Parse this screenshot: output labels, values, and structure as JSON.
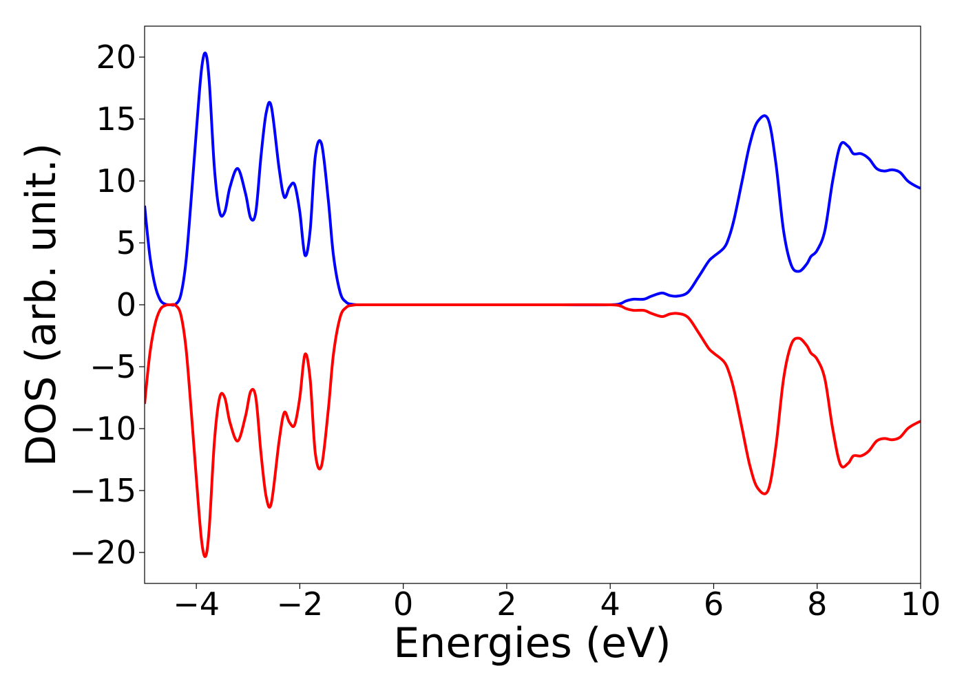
{
  "chart_data": {
    "type": "line",
    "title": "",
    "xlabel": "Energies (eV)",
    "ylabel": "DOS (arb. unit.)",
    "xlim": [
      -5,
      10
    ],
    "ylim": [
      -22.5,
      22.5
    ],
    "x_ticks": [
      -4,
      -2,
      0,
      2,
      4,
      6,
      8,
      10
    ],
    "y_ticks": [
      -20,
      -15,
      -10,
      -5,
      0,
      5,
      10,
      15,
      20
    ],
    "x_tick_labels": [
      "−4",
      "−2",
      "0",
      "2",
      "4",
      "6",
      "8",
      "10"
    ],
    "y_tick_labels": [
      "−20",
      "−15",
      "−10",
      "−5",
      "0",
      "5",
      "10",
      "15",
      "20"
    ],
    "grid": false,
    "legend": "none",
    "series": [
      {
        "color": "#0000ff",
        "x": [
          -5.0,
          -4.9,
          -4.8,
          -4.7,
          -4.6,
          -4.5,
          -4.4,
          -4.3,
          -4.2,
          -4.1,
          -4.0,
          -3.9,
          -3.82,
          -3.75,
          -3.65,
          -3.55,
          -3.45,
          -3.35,
          -3.2,
          -3.05,
          -2.95,
          -2.85,
          -2.75,
          -2.65,
          -2.55,
          -2.4,
          -2.3,
          -2.2,
          -2.1,
          -2.0,
          -1.9,
          -1.8,
          -1.7,
          -1.58,
          -1.45,
          -1.35,
          -1.22,
          -1.1,
          -1.0,
          -0.9,
          -0.8,
          -0.7,
          -0.6,
          -0.5,
          0.0,
          1.0,
          2.0,
          3.0,
          4.0,
          4.2,
          4.3,
          4.45,
          4.65,
          4.8,
          5.0,
          5.15,
          5.3,
          5.5,
          5.7,
          5.9,
          6.0,
          6.2,
          6.3,
          6.4,
          6.55,
          6.7,
          6.85,
          7.05,
          7.2,
          7.35,
          7.5,
          7.65,
          7.8,
          7.88,
          8.0,
          8.15,
          8.3,
          8.45,
          8.6,
          8.7,
          8.85,
          9.0,
          9.15,
          9.3,
          9.45,
          9.6,
          9.75,
          9.9,
          10.0
        ],
        "y": [
          8.0,
          4.0,
          1.6,
          0.4,
          0.05,
          0.0,
          0.05,
          0.8,
          3.5,
          8.5,
          14.0,
          19.0,
          20.3,
          18.0,
          11.0,
          7.5,
          7.5,
          9.5,
          11.0,
          9.0,
          7.0,
          7.5,
          12.0,
          15.5,
          16.0,
          11.0,
          8.7,
          9.5,
          9.7,
          7.5,
          4.0,
          6.0,
          12.0,
          13.0,
          8.5,
          4.0,
          1.0,
          0.2,
          0.05,
          0.0,
          0.0,
          0.0,
          0.0,
          0.0,
          0.0,
          0.0,
          0.0,
          0.0,
          0.0,
          0.1,
          0.3,
          0.45,
          0.45,
          0.7,
          0.95,
          0.75,
          0.7,
          1.0,
          2.2,
          3.5,
          3.9,
          4.6,
          5.5,
          7.0,
          10.0,
          13.0,
          14.8,
          15.0,
          11.5,
          6.0,
          3.2,
          2.7,
          3.3,
          3.9,
          4.4,
          6.0,
          10.0,
          12.9,
          12.8,
          12.2,
          12.2,
          11.8,
          11.0,
          10.8,
          10.9,
          10.7,
          10.0,
          9.6,
          9.4
        ]
      },
      {
        "color": "#ff0000",
        "x": [
          -5.0,
          -4.9,
          -4.8,
          -4.7,
          -4.6,
          -4.5,
          -4.4,
          -4.3,
          -4.2,
          -4.1,
          -4.0,
          -3.9,
          -3.82,
          -3.75,
          -3.65,
          -3.55,
          -3.45,
          -3.35,
          -3.2,
          -3.05,
          -2.95,
          -2.85,
          -2.75,
          -2.65,
          -2.55,
          -2.4,
          -2.3,
          -2.2,
          -2.1,
          -2.0,
          -1.9,
          -1.8,
          -1.7,
          -1.58,
          -1.45,
          -1.35,
          -1.22,
          -1.1,
          -1.0,
          -0.9,
          -0.8,
          -0.7,
          -0.6,
          -0.5,
          0.0,
          1.0,
          2.0,
          3.0,
          4.0,
          4.2,
          4.3,
          4.45,
          4.65,
          4.8,
          5.0,
          5.15,
          5.3,
          5.5,
          5.7,
          5.9,
          6.0,
          6.2,
          6.3,
          6.4,
          6.55,
          6.7,
          6.85,
          7.05,
          7.2,
          7.35,
          7.5,
          7.65,
          7.8,
          7.88,
          8.0,
          8.15,
          8.3,
          8.45,
          8.6,
          8.7,
          8.85,
          9.0,
          9.15,
          9.3,
          9.45,
          9.6,
          9.75,
          9.9,
          10.0
        ],
        "y": [
          -8.0,
          -4.0,
          -1.6,
          -0.4,
          -0.05,
          0.0,
          -0.05,
          -0.8,
          -3.5,
          -8.5,
          -14.0,
          -19.0,
          -20.3,
          -18.0,
          -11.0,
          -7.5,
          -7.5,
          -9.5,
          -11.0,
          -9.0,
          -7.0,
          -7.5,
          -12.0,
          -15.5,
          -16.0,
          -11.0,
          -8.7,
          -9.5,
          -9.7,
          -7.5,
          -4.0,
          -6.0,
          -12.0,
          -13.0,
          -8.5,
          -4.0,
          -1.0,
          -0.2,
          -0.05,
          0.0,
          0.0,
          0.0,
          0.0,
          0.0,
          0.0,
          0.0,
          0.0,
          0.0,
          0.0,
          -0.1,
          -0.3,
          -0.45,
          -0.45,
          -0.7,
          -0.95,
          -0.75,
          -0.7,
          -1.0,
          -2.2,
          -3.5,
          -3.9,
          -4.6,
          -5.5,
          -7.0,
          -10.0,
          -13.0,
          -14.8,
          -15.0,
          -11.5,
          -6.0,
          -3.2,
          -2.7,
          -3.3,
          -3.9,
          -4.4,
          -6.0,
          -10.0,
          -12.9,
          -12.8,
          -12.2,
          -12.2,
          -11.8,
          -11.0,
          -10.8,
          -10.9,
          -10.7,
          -10.0,
          -9.6,
          -9.4
        ]
      }
    ]
  }
}
